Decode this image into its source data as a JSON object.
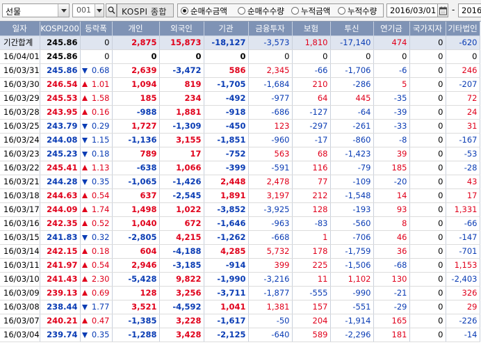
{
  "toolbar": {
    "market_type": "선물",
    "code": "001",
    "index_name": "KOSPI 종합",
    "radios": [
      {
        "label": "순매수금액",
        "checked": true
      },
      {
        "label": "순매수수량",
        "checked": false
      },
      {
        "label": "누적금액",
        "checked": false
      },
      {
        "label": "누적수량",
        "checked": false
      }
    ],
    "start_date": "2016/03/01",
    "range_sep": "-",
    "end_date": "2016/"
  },
  "colors": {
    "up": "#e0001b",
    "down": "#0a3cb4",
    "header_bg": "#7f93b5",
    "summary_bg": "#dfe5f0"
  },
  "table": {
    "headers": [
      "일자",
      "KOSPI200",
      "등락폭",
      "개인",
      "외국인",
      "기관",
      "금융투자",
      "보험",
      "투신",
      "연기금",
      "국가지자",
      "기타법인"
    ],
    "rows": [
      {
        "date": "기간합계",
        "k": "245.86",
        "kdir": "none",
        "chg": "0",
        "ind": "2,875",
        "for": "15,873",
        "inst": "-18,127",
        "fin": "-3,573",
        "ins": "1,810",
        "trust": "-17,140",
        "pen": "474",
        "gov": "0",
        "etc": "-620",
        "summary": true
      },
      {
        "date": "16/04/01",
        "k": "245.86",
        "kdir": "none",
        "chg": "0",
        "ind": "0",
        "for": "0",
        "inst": "0",
        "fin": "0",
        "ins": "0",
        "trust": "0",
        "pen": "0",
        "gov": "0",
        "etc": "0"
      },
      {
        "date": "16/03/31",
        "k": "245.86",
        "kdir": "down",
        "chg": "0.68",
        "ind": "2,639",
        "for": "-3,472",
        "inst": "586",
        "fin": "2,345",
        "ins": "-66",
        "trust": "-1,706",
        "pen": "-6",
        "gov": "0",
        "etc": "246"
      },
      {
        "date": "16/03/30",
        "k": "246.54",
        "kdir": "up",
        "chg": "1.01",
        "ind": "1,094",
        "for": "819",
        "inst": "-1,705",
        "fin": "-1,684",
        "ins": "210",
        "trust": "-286",
        "pen": "5",
        "gov": "0",
        "etc": "-207"
      },
      {
        "date": "16/03/29",
        "k": "245.53",
        "kdir": "up",
        "chg": "1.58",
        "ind": "185",
        "for": "234",
        "inst": "-492",
        "fin": "-977",
        "ins": "64",
        "trust": "445",
        "pen": "-35",
        "gov": "0",
        "etc": "72"
      },
      {
        "date": "16/03/28",
        "k": "243.95",
        "kdir": "up",
        "chg": "0.16",
        "ind": "-988",
        "for": "1,881",
        "inst": "-918",
        "fin": "-686",
        "ins": "-127",
        "trust": "-64",
        "pen": "-39",
        "gov": "0",
        "etc": "24"
      },
      {
        "date": "16/03/25",
        "k": "243.79",
        "kdir": "down",
        "chg": "0.29",
        "ind": "1,727",
        "for": "-1,309",
        "inst": "-450",
        "fin": "123",
        "ins": "-297",
        "trust": "-261",
        "pen": "-33",
        "gov": "0",
        "etc": "31"
      },
      {
        "date": "16/03/24",
        "k": "244.08",
        "kdir": "down",
        "chg": "1.15",
        "ind": "-1,136",
        "for": "3,155",
        "inst": "-1,851",
        "fin": "-960",
        "ins": "-17",
        "trust": "-860",
        "pen": "-8",
        "gov": "0",
        "etc": "-167"
      },
      {
        "date": "16/03/23",
        "k": "245.23",
        "kdir": "down",
        "chg": "0.18",
        "ind": "789",
        "for": "17",
        "inst": "-752",
        "fin": "563",
        "ins": "68",
        "trust": "-1,423",
        "pen": "39",
        "gov": "0",
        "etc": "-53"
      },
      {
        "date": "16/03/22",
        "k": "245.41",
        "kdir": "up",
        "chg": "1.13",
        "ind": "-638",
        "for": "1,066",
        "inst": "-399",
        "fin": "-591",
        "ins": "116",
        "trust": "-79",
        "pen": "185",
        "gov": "0",
        "etc": "-28"
      },
      {
        "date": "16/03/21",
        "k": "244.28",
        "kdir": "down",
        "chg": "0.35",
        "ind": "-1,065",
        "for": "-1,426",
        "inst": "2,448",
        "fin": "2,478",
        "ins": "77",
        "trust": "-109",
        "pen": "-20",
        "gov": "0",
        "etc": "43"
      },
      {
        "date": "16/03/18",
        "k": "244.63",
        "kdir": "up",
        "chg": "0.54",
        "ind": "637",
        "for": "-2,545",
        "inst": "1,891",
        "fin": "3,197",
        "ins": "212",
        "trust": "-1,548",
        "pen": "14",
        "gov": "0",
        "etc": "17"
      },
      {
        "date": "16/03/17",
        "k": "244.09",
        "kdir": "up",
        "chg": "1.74",
        "ind": "1,498",
        "for": "1,022",
        "inst": "-3,852",
        "fin": "-3,925",
        "ins": "128",
        "trust": "-193",
        "pen": "93",
        "gov": "0",
        "etc": "1,331"
      },
      {
        "date": "16/03/16",
        "k": "242.35",
        "kdir": "up",
        "chg": "0.52",
        "ind": "1,040",
        "for": "672",
        "inst": "-1,646",
        "fin": "-963",
        "ins": "-83",
        "trust": "-560",
        "pen": "8",
        "gov": "0",
        "etc": "-66"
      },
      {
        "date": "16/03/15",
        "k": "241.83",
        "kdir": "down",
        "chg": "0.32",
        "ind": "-2,805",
        "for": "4,215",
        "inst": "-1,262",
        "fin": "-668",
        "ins": "1",
        "trust": "-706",
        "pen": "46",
        "gov": "0",
        "etc": "-147"
      },
      {
        "date": "16/03/14",
        "k": "242.15",
        "kdir": "up",
        "chg": "0.18",
        "ind": "604",
        "for": "-4,188",
        "inst": "4,285",
        "fin": "5,732",
        "ins": "178",
        "trust": "-1,759",
        "pen": "36",
        "gov": "0",
        "etc": "-701"
      },
      {
        "date": "16/03/11",
        "k": "241.97",
        "kdir": "up",
        "chg": "0.54",
        "ind": "2,946",
        "for": "-3,185",
        "inst": "-914",
        "fin": "399",
        "ins": "225",
        "trust": "-1,506",
        "pen": "-68",
        "gov": "0",
        "etc": "1,153"
      },
      {
        "date": "16/03/10",
        "k": "241.43",
        "kdir": "up",
        "chg": "2.30",
        "ind": "-5,428",
        "for": "9,822",
        "inst": "-1,990",
        "fin": "-3,216",
        "ins": "11",
        "trust": "1,102",
        "pen": "130",
        "gov": "0",
        "etc": "-2,403"
      },
      {
        "date": "16/03/09",
        "k": "239.13",
        "kdir": "up",
        "chg": "0.69",
        "ind": "128",
        "for": "3,256",
        "inst": "-3,711",
        "fin": "-1,877",
        "ins": "-555",
        "trust": "-990",
        "pen": "-21",
        "gov": "0",
        "etc": "326"
      },
      {
        "date": "16/03/08",
        "k": "238.44",
        "kdir": "down",
        "chg": "1.77",
        "ind": "3,521",
        "for": "-4,592",
        "inst": "1,041",
        "fin": "1,381",
        "ins": "157",
        "trust": "-551",
        "pen": "-29",
        "gov": "0",
        "etc": "29"
      },
      {
        "date": "16/03/07",
        "k": "240.21",
        "kdir": "up",
        "chg": "0.47",
        "ind": "-1,385",
        "for": "3,228",
        "inst": "-1,617",
        "fin": "-50",
        "ins": "204",
        "trust": "-1,914",
        "pen": "165",
        "gov": "0",
        "etc": "-226"
      },
      {
        "date": "16/03/04",
        "k": "239.74",
        "kdir": "down",
        "chg": "0.35",
        "ind": "-1,288",
        "for": "3,428",
        "inst": "-2,125",
        "fin": "-640",
        "ins": "589",
        "trust": "-2,296",
        "pen": "181",
        "gov": "0",
        "etc": "-14"
      }
    ]
  }
}
